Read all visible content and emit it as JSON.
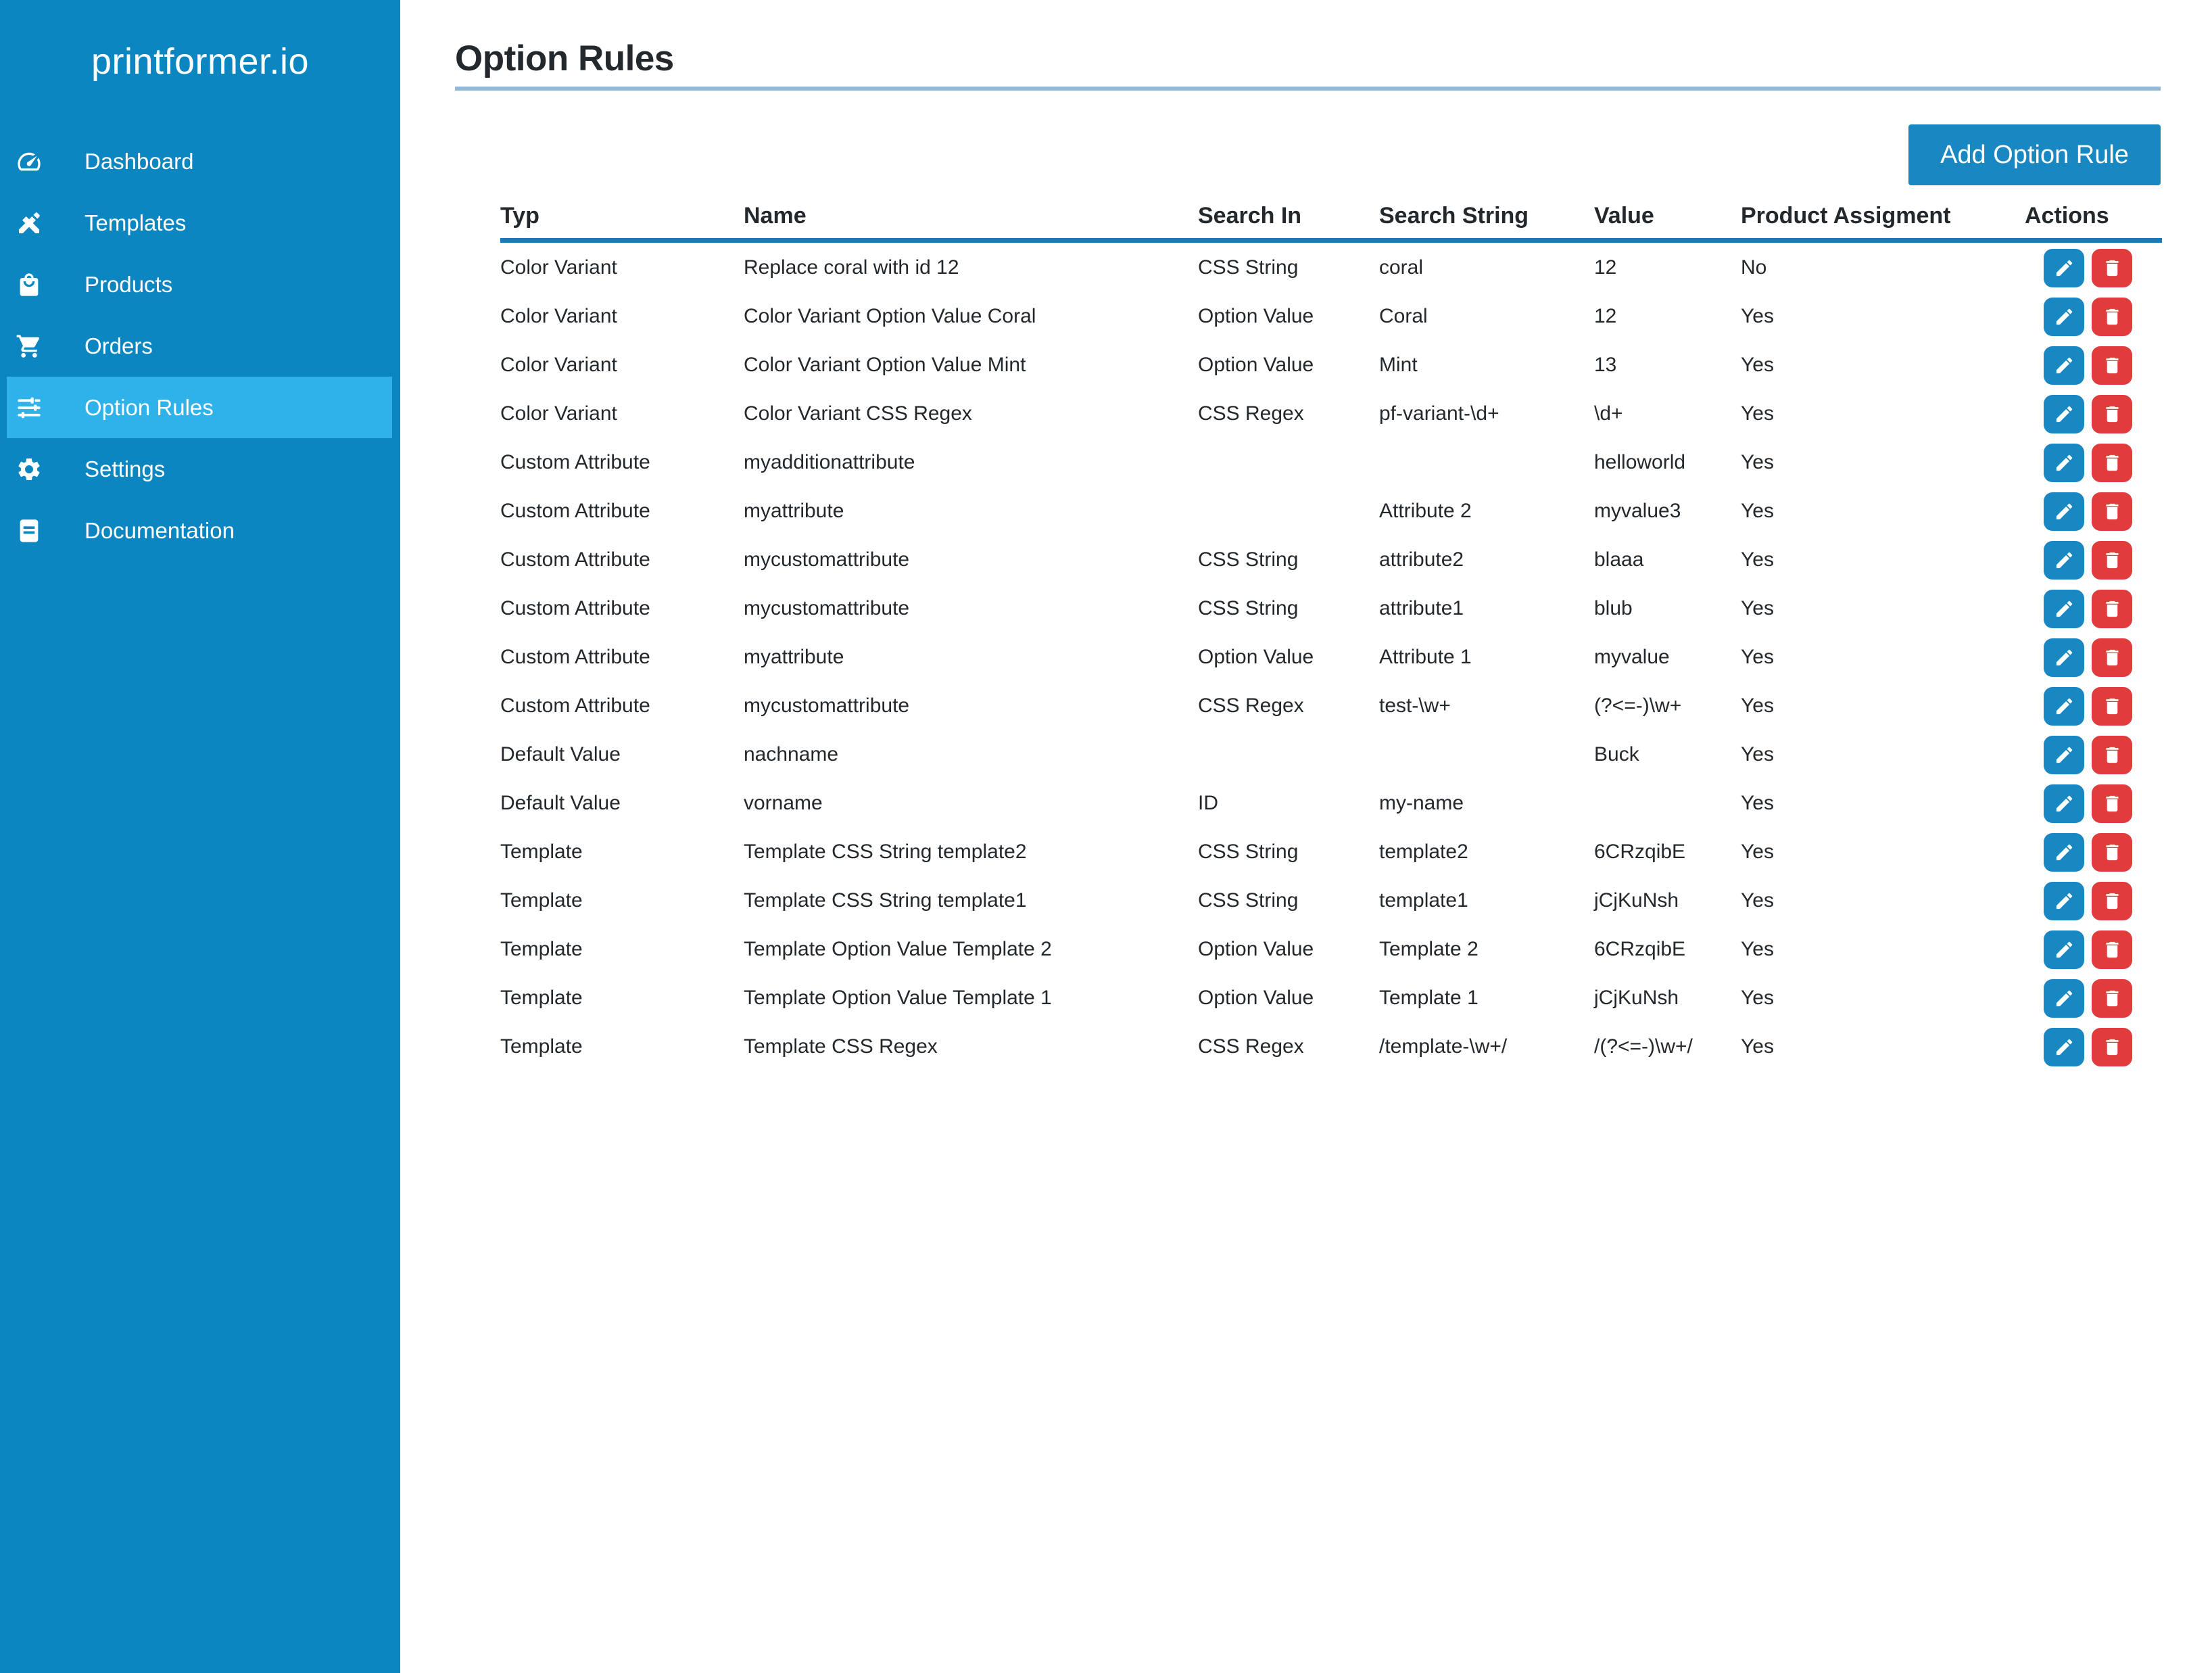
{
  "app": {
    "logo": "printformer.io"
  },
  "sidebar": {
    "items": [
      {
        "label": "Dashboard",
        "icon": "dashboard-icon",
        "active": false
      },
      {
        "label": "Templates",
        "icon": "templates-icon",
        "active": false
      },
      {
        "label": "Products",
        "icon": "products-icon",
        "active": false
      },
      {
        "label": "Orders",
        "icon": "orders-icon",
        "active": false
      },
      {
        "label": "Option Rules",
        "icon": "option-rules-icon",
        "active": true
      },
      {
        "label": "Settings",
        "icon": "settings-icon",
        "active": false
      },
      {
        "label": "Documentation",
        "icon": "documentation-icon",
        "active": false
      }
    ]
  },
  "page": {
    "title": "Option Rules",
    "add_button_label": "Add Option Rule"
  },
  "table": {
    "columns": [
      "Typ",
      "Name",
      "Search In",
      "Search String",
      "Value",
      "Product Assigment",
      "Actions"
    ],
    "rows": [
      {
        "typ": "Color Variant",
        "name": "Replace coral with id 12",
        "search_in": "CSS String",
        "search_string": "coral",
        "value": "12",
        "product_assignment": "No"
      },
      {
        "typ": "Color Variant",
        "name": "Color Variant Option Value Coral",
        "search_in": "Option Value",
        "search_string": "Coral",
        "value": "12",
        "product_assignment": "Yes"
      },
      {
        "typ": "Color Variant",
        "name": "Color Variant Option Value Mint",
        "search_in": "Option Value",
        "search_string": "Mint",
        "value": "13",
        "product_assignment": "Yes"
      },
      {
        "typ": "Color Variant",
        "name": "Color Variant CSS Regex",
        "search_in": "CSS Regex",
        "search_string": "pf-variant-\\d+",
        "value": "\\d+",
        "product_assignment": "Yes"
      },
      {
        "typ": "Custom Attribute",
        "name": "myadditionattribute",
        "search_in": "",
        "search_string": "",
        "value": "helloworld",
        "product_assignment": "Yes"
      },
      {
        "typ": "Custom Attribute",
        "name": "myattribute",
        "search_in": "",
        "search_string": "Attribute 2",
        "value": "myvalue3",
        "product_assignment": "Yes"
      },
      {
        "typ": "Custom Attribute",
        "name": "mycustomattribute",
        "search_in": "CSS String",
        "search_string": "attribute2",
        "value": "blaaa",
        "product_assignment": "Yes"
      },
      {
        "typ": "Custom Attribute",
        "name": "mycustomattribute",
        "search_in": "CSS String",
        "search_string": "attribute1",
        "value": "blub",
        "product_assignment": "Yes"
      },
      {
        "typ": "Custom Attribute",
        "name": "myattribute",
        "search_in": "Option Value",
        "search_string": "Attribute 1",
        "value": "myvalue",
        "product_assignment": "Yes"
      },
      {
        "typ": "Custom Attribute",
        "name": "mycustomattribute",
        "search_in": "CSS Regex",
        "search_string": "test-\\w+",
        "value": "(?<=-)\\w+",
        "product_assignment": "Yes"
      },
      {
        "typ": "Default Value",
        "name": "nachname",
        "search_in": "",
        "search_string": "",
        "value": "Buck",
        "product_assignment": "Yes"
      },
      {
        "typ": "Default Value",
        "name": "vorname",
        "search_in": "ID",
        "search_string": "my-name",
        "value": "",
        "product_assignment": "Yes"
      },
      {
        "typ": "Template",
        "name": "Template CSS String template2",
        "search_in": "CSS String",
        "search_string": "template2",
        "value": "6CRzqibE",
        "product_assignment": "Yes"
      },
      {
        "typ": "Template",
        "name": "Template CSS String template1",
        "search_in": "CSS String",
        "search_string": "template1",
        "value": "jCjKuNsh",
        "product_assignment": "Yes"
      },
      {
        "typ": "Template",
        "name": "Template Option Value Template 2",
        "search_in": "Option Value",
        "search_string": "Template 2",
        "value": "6CRzqibE",
        "product_assignment": "Yes"
      },
      {
        "typ": "Template",
        "name": "Template Option Value Template 1",
        "search_in": "Option Value",
        "search_string": "Template 1",
        "value": "jCjKuNsh",
        "product_assignment": "Yes"
      },
      {
        "typ": "Template",
        "name": "Template CSS Regex",
        "search_in": "CSS Regex",
        "search_string": "/template-\\w+/",
        "value": "/(?<=-)\\w+/",
        "product_assignment": "Yes"
      }
    ],
    "row_actions": [
      {
        "label": "edit",
        "icon": "pencil-icon"
      },
      {
        "label": "delete",
        "icon": "trash-icon"
      }
    ]
  },
  "colors": {
    "sidebar": "#0C86C0",
    "sidebar_active_item": "#2FB1EA",
    "primary_button": "#1987C1",
    "edit_button": "#1987C1",
    "delete_button": "#E23B3B",
    "header_rule": "#1A7AB5",
    "title_rule": "#94B9D8",
    "text": "#23282D"
  }
}
